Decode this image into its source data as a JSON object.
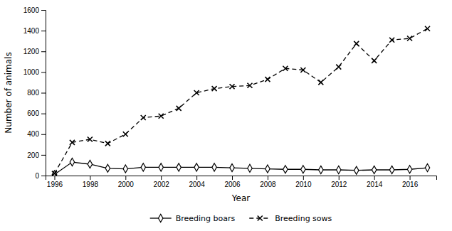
{
  "chart_data": {
    "type": "line",
    "x": [
      1996,
      1997,
      1998,
      1999,
      2000,
      2001,
      2002,
      2003,
      2004,
      2005,
      2006,
      2007,
      2008,
      2009,
      2010,
      2011,
      2012,
      2013,
      2014,
      2015,
      2016,
      2017
    ],
    "series": [
      {
        "name": "Breeding boars",
        "color": "#000000",
        "marker": "diamond",
        "line_style": "solid",
        "values": [
          10,
          130,
          110,
          70,
          65,
          80,
          80,
          80,
          80,
          80,
          75,
          70,
          65,
          60,
          60,
          55,
          55,
          50,
          55,
          55,
          60,
          75
        ]
      },
      {
        "name": "Breeding sows",
        "color": "#000000",
        "marker": "x",
        "line_style": "dashed",
        "values": [
          20,
          320,
          350,
          310,
          400,
          560,
          575,
          650,
          800,
          840,
          860,
          870,
          930,
          1035,
          1020,
          900,
          1050,
          1275,
          1110,
          1310,
          1325,
          1420
        ]
      }
    ],
    "xlabel": "Year",
    "ylabel": "Number of animals",
    "xlim": [
      1995.5,
      2017.5
    ],
    "xticks": [
      1996,
      1998,
      2000,
      2002,
      2004,
      2006,
      2008,
      2010,
      2012,
      2014,
      2016
    ],
    "ylim": [
      0,
      1600
    ],
    "yticks": [
      0,
      200,
      400,
      600,
      800,
      1000,
      1200,
      1400,
      1600
    ],
    "grid": false,
    "legend": "bottom"
  }
}
